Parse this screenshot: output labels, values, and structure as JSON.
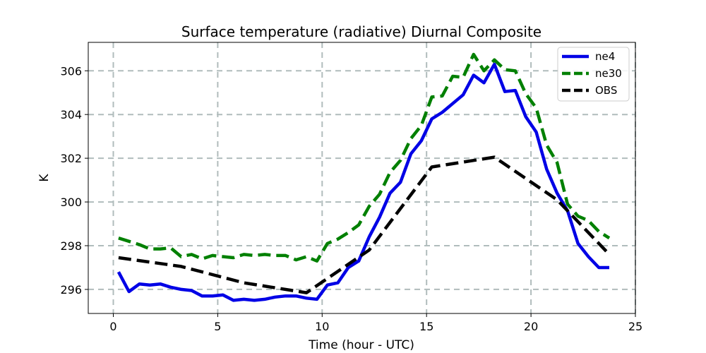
{
  "chart_data": {
    "type": "line",
    "title": "Surface temperature (radiative) Diurnal Composite",
    "xlabel": "Time (hour - UTC)",
    "ylabel": "K",
    "xlim": [
      -1.2,
      25
    ],
    "ylim": [
      294.9,
      307.3
    ],
    "xticks": [
      0,
      5,
      10,
      15,
      20,
      25
    ],
    "xtick_labels": [
      "0",
      "5",
      "10",
      "15",
      "20",
      "25"
    ],
    "yticks": [
      296,
      298,
      300,
      302,
      304,
      306
    ],
    "ytick_labels": [
      "296",
      "298",
      "300",
      "302",
      "304",
      "306"
    ],
    "grid": true,
    "legend_position": "top-right",
    "series": [
      {
        "name": "ne4",
        "color": "#0000e6",
        "dash": "solid",
        "x": [
          0.25,
          0.75,
          1.25,
          1.75,
          2.25,
          2.75,
          3.25,
          3.75,
          4.25,
          4.75,
          5.25,
          5.75,
          6.25,
          6.75,
          7.25,
          7.75,
          8.25,
          8.75,
          9.25,
          9.75,
          10.25,
          10.75,
          11.25,
          11.75,
          12.25,
          12.75,
          13.25,
          13.75,
          14.25,
          14.75,
          15.25,
          15.75,
          16.25,
          16.75,
          17.25,
          17.75,
          18.25,
          18.75,
          19.25,
          19.75,
          20.25,
          20.75,
          21.25,
          21.75,
          22.25,
          22.75,
          23.25,
          23.75
        ],
        "values": [
          296.8,
          295.9,
          296.25,
          296.2,
          296.25,
          296.1,
          296.0,
          295.95,
          295.7,
          295.7,
          295.75,
          295.5,
          295.55,
          295.5,
          295.55,
          295.65,
          295.7,
          295.7,
          295.6,
          295.55,
          296.2,
          296.3,
          297.0,
          297.3,
          298.4,
          299.3,
          300.4,
          300.9,
          302.2,
          302.8,
          303.8,
          304.1,
          304.5,
          304.9,
          305.8,
          305.45,
          306.3,
          305.05,
          305.1,
          303.9,
          303.2,
          301.5,
          300.4,
          299.6,
          298.1,
          297.5,
          297.0,
          297.0
        ]
      },
      {
        "name": "ne30",
        "color": "#008000",
        "dash": "dashed",
        "x": [
          0.25,
          0.75,
          1.25,
          1.75,
          2.25,
          2.75,
          3.25,
          3.75,
          4.25,
          4.75,
          5.25,
          5.75,
          6.25,
          6.75,
          7.25,
          7.75,
          8.25,
          8.75,
          9.25,
          9.75,
          10.25,
          10.75,
          11.25,
          11.75,
          12.25,
          12.75,
          13.25,
          13.75,
          14.25,
          14.75,
          15.25,
          15.75,
          16.25,
          16.75,
          17.25,
          17.75,
          18.25,
          18.75,
          19.25,
          19.75,
          20.25,
          20.75,
          21.25,
          21.75,
          22.25,
          22.75,
          23.25,
          23.75
        ],
        "values": [
          298.35,
          298.2,
          298.05,
          297.85,
          297.85,
          297.9,
          297.5,
          297.6,
          297.4,
          297.55,
          297.5,
          297.45,
          297.6,
          297.55,
          297.6,
          297.55,
          297.55,
          297.35,
          297.5,
          297.3,
          298.1,
          298.3,
          298.6,
          298.95,
          299.8,
          300.35,
          301.35,
          301.9,
          302.9,
          303.5,
          304.8,
          304.85,
          305.75,
          305.7,
          306.75,
          306.0,
          306.5,
          306.05,
          306.0,
          304.95,
          304.3,
          302.6,
          301.8,
          299.9,
          299.35,
          299.15,
          298.65,
          298.35
        ]
      },
      {
        "name": "OBS",
        "color": "#000000",
        "dash": "dashed",
        "x": [
          0.25,
          3.25,
          6.25,
          9.25,
          12.25,
          15.25,
          18.25,
          21.25,
          23.75
        ],
        "values": [
          297.45,
          297.05,
          296.3,
          295.85,
          297.8,
          301.6,
          302.05,
          300.1,
          297.6
        ]
      }
    ]
  }
}
